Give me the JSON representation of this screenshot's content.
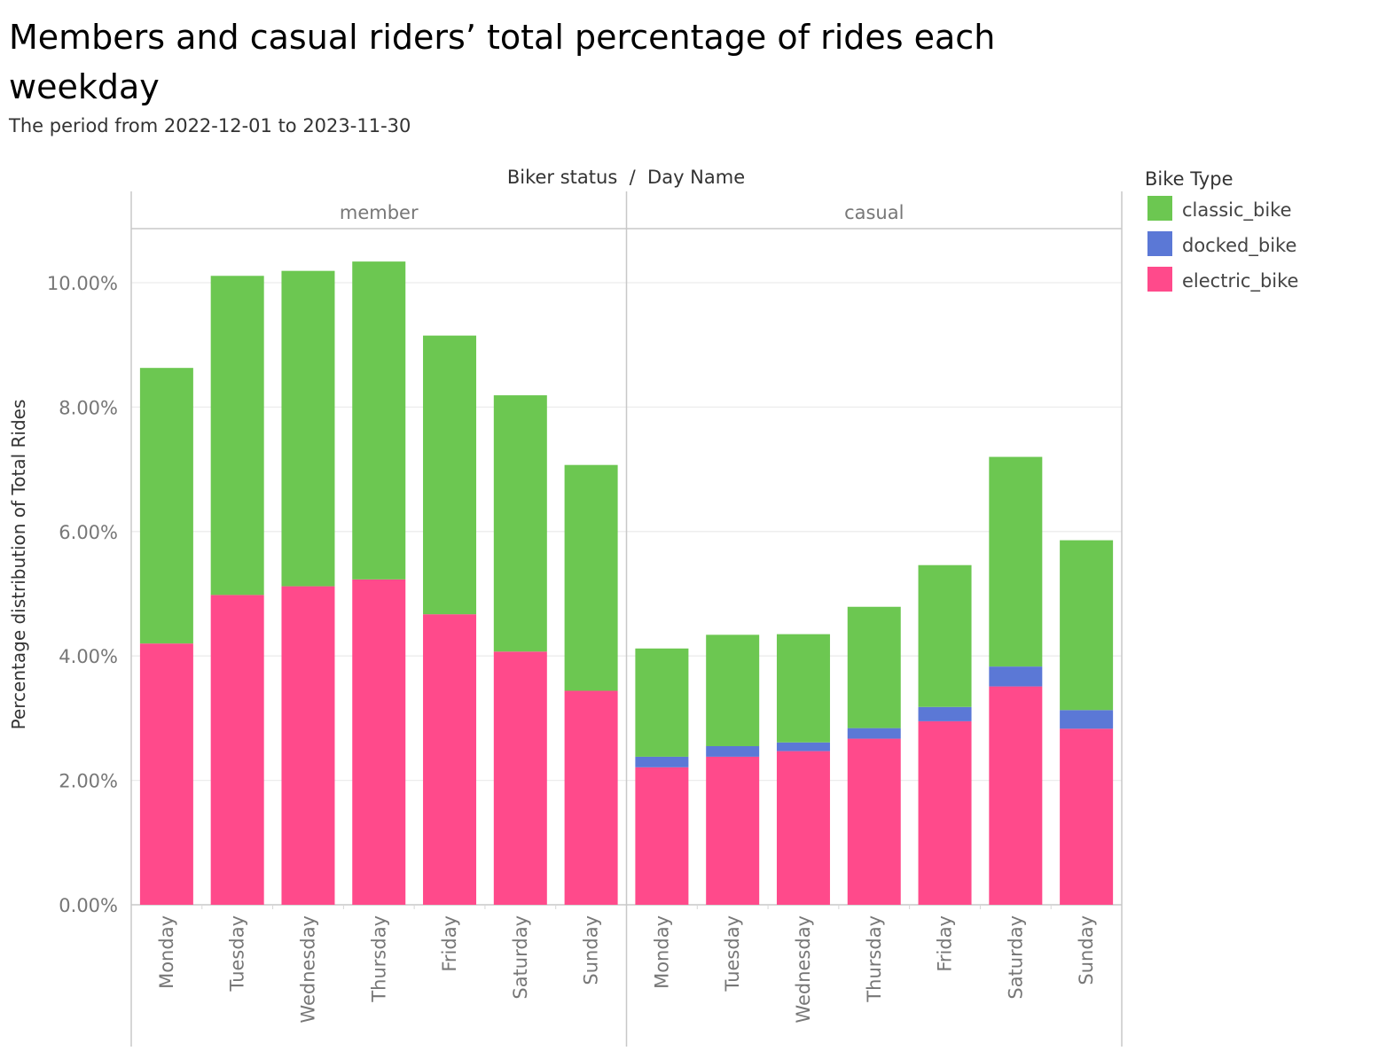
{
  "title": "Members and casual riders’ total percentage of rides each weekday",
  "subtitle": "The period from 2022-12-01 to 2023-11-30",
  "chart_data": {
    "type": "bar",
    "stacked": true,
    "column_header": "Biker status  /  Day Name",
    "ylabel": "Percentage distribution of Total Rides",
    "ylim": [
      0,
      10.8
    ],
    "yticks": [
      0,
      2,
      4,
      6,
      8,
      10
    ],
    "ytick_labels": [
      "0.00%",
      "2.00%",
      "4.00%",
      "6.00%",
      "8.00%",
      "10.00%"
    ],
    "grid": true,
    "legend_title": "Bike Type",
    "legend_position": "right",
    "series": [
      {
        "name": "electric_bike",
        "color": "#ff4a8b"
      },
      {
        "name": "docked_bike",
        "color": "#5b78d6"
      },
      {
        "name": "classic_bike",
        "color": "#6cc751"
      }
    ],
    "legend_order": [
      "classic_bike",
      "docked_bike",
      "electric_bike"
    ],
    "panels": [
      {
        "name": "member",
        "categories": [
          "Monday",
          "Tuesday",
          "Wednesday",
          "Thursday",
          "Friday",
          "Saturday",
          "Sunday"
        ],
        "values": {
          "electric_bike": [
            4.2,
            4.98,
            5.12,
            5.23,
            4.67,
            4.07,
            3.44
          ],
          "docked_bike": [
            0,
            0,
            0,
            0,
            0,
            0,
            0
          ],
          "classic_bike": [
            4.43,
            5.13,
            5.07,
            5.11,
            4.48,
            4.12,
            3.63
          ]
        }
      },
      {
        "name": "casual",
        "categories": [
          "Monday",
          "Tuesday",
          "Wednesday",
          "Thursday",
          "Friday",
          "Saturday",
          "Sunday"
        ],
        "values": {
          "electric_bike": [
            2.21,
            2.38,
            2.47,
            2.67,
            2.95,
            3.51,
            2.83
          ],
          "docked_bike": [
            0.17,
            0.17,
            0.14,
            0.17,
            0.23,
            0.32,
            0.3
          ],
          "classic_bike": [
            1.74,
            1.79,
            1.74,
            1.95,
            2.28,
            3.37,
            2.73
          ]
        }
      }
    ]
  }
}
